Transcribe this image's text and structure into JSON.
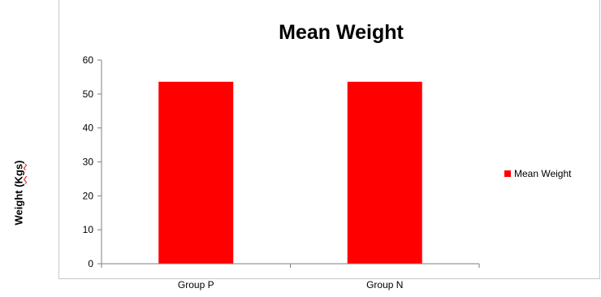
{
  "chart_data": {
    "type": "bar",
    "title": "Mean Weight",
    "ylabel_prefix": "Weight (",
    "ylabel_unit": "Kgs",
    "ylabel_suffix": ")",
    "xlabel": "",
    "categories": [
      "Group P",
      "Group N"
    ],
    "series": [
      {
        "name": "Mean Weight",
        "values": [
          53.6,
          53.6
        ],
        "color": "#ff0000"
      }
    ],
    "ylim": [
      0,
      60
    ],
    "yticks": [
      0,
      10,
      20,
      30,
      40,
      50,
      60
    ],
    "grid": false,
    "legend": "right"
  }
}
